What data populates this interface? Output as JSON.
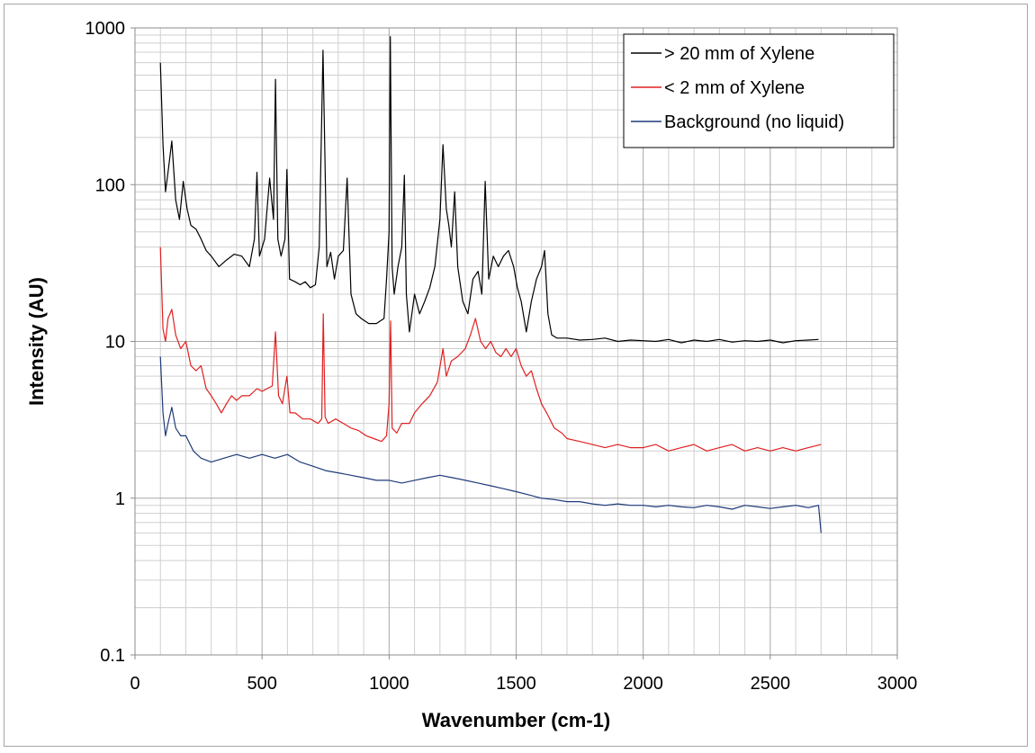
{
  "chart_data": {
    "type": "line",
    "xlabel": "Wavenumber (cm-1)",
    "ylabel": "Intensity (AU)",
    "xlim": [
      0,
      3000
    ],
    "ylim": [
      0.1,
      1000
    ],
    "yscale": "log",
    "grid": true,
    "legend_position": "top-right",
    "x_ticks": [
      0,
      500,
      1000,
      1500,
      2000,
      2500,
      3000
    ],
    "x_tick_labels": [
      "0",
      "500",
      "1000",
      "1500",
      "2000",
      "2500",
      "3000"
    ],
    "y_ticks": [
      0.1,
      1,
      10,
      100,
      1000
    ],
    "y_tick_labels": [
      "0.1",
      "1",
      "10",
      "100",
      "1000"
    ],
    "series": [
      {
        "name": "> 20 mm of Xylene",
        "color": "#000000",
        "x": [
          100,
          110,
          120,
          130,
          145,
          160,
          175,
          190,
          205,
          220,
          240,
          260,
          280,
          300,
          330,
          360,
          390,
          420,
          450,
          470,
          480,
          490,
          510,
          530,
          545,
          553,
          562,
          575,
          590,
          598,
          608,
          630,
          650,
          670,
          690,
          710,
          725,
          740,
          755,
          770,
          785,
          800,
          820,
          835,
          850,
          870,
          890,
          920,
          950,
          980,
          990,
          1000,
          1005,
          1012,
          1020,
          1035,
          1050,
          1060,
          1068,
          1080,
          1100,
          1120,
          1140,
          1160,
          1180,
          1200,
          1212,
          1225,
          1235,
          1245,
          1258,
          1270,
          1290,
          1310,
          1330,
          1350,
          1365,
          1378,
          1392,
          1410,
          1430,
          1450,
          1470,
          1490,
          1505,
          1520,
          1540,
          1560,
          1580,
          1600,
          1612,
          1625,
          1640,
          1660,
          1700,
          1750,
          1800,
          1850,
          1900,
          1950,
          2000,
          2050,
          2100,
          2150,
          2200,
          2250,
          2300,
          2350,
          2400,
          2450,
          2500,
          2550,
          2600,
          2650,
          2690
        ],
        "values": [
          600,
          180,
          90,
          120,
          190,
          80,
          60,
          105,
          70,
          55,
          52,
          45,
          38,
          35,
          30,
          33,
          36,
          35,
          30,
          45,
          120,
          35,
          45,
          110,
          60,
          470,
          45,
          35,
          45,
          125,
          25,
          24,
          23,
          24,
          22,
          23,
          40,
          720,
          30,
          37,
          25,
          35,
          38,
          110,
          20,
          15,
          14,
          13,
          13,
          14,
          25,
          50,
          880,
          30,
          20,
          30,
          40,
          115,
          20,
          11.5,
          20,
          15,
          18,
          22,
          30,
          60,
          180,
          70,
          55,
          40,
          90,
          30,
          18,
          15,
          25,
          28,
          20,
          105,
          25,
          35,
          30,
          35,
          38,
          30,
          22,
          18,
          11.5,
          18,
          25,
          30,
          38,
          15,
          11,
          10.5,
          10.5,
          10.2,
          10.3,
          10.5,
          10,
          10.2,
          10.1,
          10,
          10.3,
          9.8,
          10.2,
          10,
          10.3,
          9.9,
          10.1,
          10,
          10.2,
          9.8,
          10.1,
          10.2,
          10.3
        ]
      },
      {
        "name": "< 2 mm of Xylene",
        "color": "#e02020",
        "x": [
          100,
          110,
          120,
          130,
          145,
          160,
          180,
          200,
          220,
          240,
          260,
          280,
          300,
          320,
          340,
          360,
          380,
          400,
          420,
          450,
          480,
          500,
          520,
          540,
          553,
          565,
          580,
          598,
          610,
          630,
          660,
          690,
          720,
          735,
          741,
          748,
          760,
          790,
          820,
          850,
          880,
          910,
          940,
          970,
          990,
          1000,
          1006,
          1012,
          1030,
          1050,
          1080,
          1100,
          1130,
          1160,
          1190,
          1212,
          1225,
          1245,
          1270,
          1300,
          1320,
          1340,
          1360,
          1380,
          1400,
          1420,
          1440,
          1460,
          1480,
          1500,
          1520,
          1540,
          1560,
          1580,
          1600,
          1620,
          1650,
          1680,
          1700,
          1750,
          1800,
          1850,
          1900,
          1950,
          2000,
          2050,
          2100,
          2150,
          2200,
          2250,
          2300,
          2350,
          2400,
          2450,
          2500,
          2550,
          2600,
          2650,
          2700
        ],
        "values": [
          40,
          12,
          10,
          14,
          16,
          11,
          9,
          10,
          7,
          6.5,
          7,
          5,
          4.5,
          4,
          3.5,
          4,
          4.5,
          4.2,
          4.5,
          4.5,
          5,
          4.8,
          5,
          5.2,
          11.5,
          4.5,
          4,
          6,
          3.5,
          3.5,
          3.2,
          3.2,
          3,
          3.2,
          15,
          3.3,
          3,
          3.2,
          3,
          2.8,
          2.7,
          2.5,
          2.4,
          2.3,
          2.5,
          4,
          13.5,
          2.8,
          2.6,
          3,
          3,
          3.5,
          4,
          4.5,
          5.5,
          9,
          6,
          7.5,
          8,
          9,
          11,
          14,
          10,
          9,
          10,
          8.5,
          8,
          9,
          8,
          9,
          7,
          6,
          6.5,
          5,
          4,
          3.5,
          2.8,
          2.6,
          2.4,
          2.3,
          2.2,
          2.1,
          2.2,
          2.1,
          2.1,
          2.2,
          2,
          2.1,
          2.2,
          2,
          2.1,
          2.2,
          2,
          2.1,
          2,
          2.1,
          2,
          2.1,
          2.2
        ]
      },
      {
        "name": "Background (no liquid)",
        "color": "#1f3a7a",
        "x": [
          100,
          110,
          120,
          130,
          145,
          160,
          180,
          200,
          230,
          260,
          300,
          350,
          400,
          450,
          500,
          550,
          600,
          650,
          700,
          750,
          800,
          850,
          900,
          950,
          1000,
          1050,
          1100,
          1150,
          1200,
          1250,
          1300,
          1350,
          1400,
          1450,
          1500,
          1550,
          1600,
          1650,
          1700,
          1750,
          1800,
          1850,
          1900,
          1950,
          2000,
          2050,
          2100,
          2150,
          2200,
          2250,
          2300,
          2350,
          2400,
          2450,
          2500,
          2550,
          2600,
          2650,
          2690,
          2700
        ],
        "values": [
          8,
          3.5,
          2.5,
          3,
          3.8,
          2.8,
          2.5,
          2.5,
          2,
          1.8,
          1.7,
          1.8,
          1.9,
          1.8,
          1.9,
          1.8,
          1.9,
          1.7,
          1.6,
          1.5,
          1.45,
          1.4,
          1.35,
          1.3,
          1.3,
          1.25,
          1.3,
          1.35,
          1.4,
          1.35,
          1.3,
          1.25,
          1.2,
          1.15,
          1.1,
          1.05,
          1.0,
          0.98,
          0.95,
          0.95,
          0.92,
          0.9,
          0.92,
          0.9,
          0.9,
          0.88,
          0.9,
          0.88,
          0.87,
          0.9,
          0.88,
          0.85,
          0.9,
          0.88,
          0.86,
          0.88,
          0.9,
          0.87,
          0.9,
          0.6
        ]
      }
    ]
  }
}
